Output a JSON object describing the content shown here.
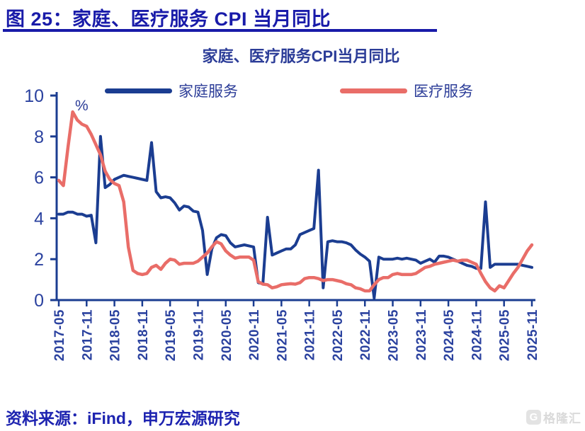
{
  "figure_header": {
    "label": "图 25：家庭、医疗服务 CPI 当月同比"
  },
  "footer": {
    "source": "资料来源：iFind，申万宏源研究"
  },
  "watermark": {
    "icon": "G",
    "text": "格隆汇"
  },
  "colors": {
    "header_text": "#191ba9",
    "header_rule": "#191ba9",
    "chart_text": "#2c3d98",
    "tick_text": "#2b429f",
    "axis": "#1b3d91",
    "footer_text": "#1d23b0",
    "watermark_gray": "#dadada"
  },
  "chart_data": {
    "type": "line",
    "title": "家庭、医疗服务CPI当月同比",
    "unit_label": "%",
    "grid": false,
    "legend_position": "top",
    "ylim": [
      0,
      10
    ],
    "yticks": [
      0,
      2,
      4,
      6,
      8,
      10
    ],
    "axis_color": "#1b3d91",
    "x_tick_labels": [
      "2017-05",
      "2017-11",
      "2018-05",
      "2018-11",
      "2019-05",
      "2019-11",
      "2020-05",
      "2020-11",
      "2021-05",
      "2021-11",
      "2022-05",
      "2022-11",
      "2023-05",
      "2023-11",
      "2024-05",
      "2024-11",
      "2025-05",
      "2025-11"
    ],
    "x": [
      "2017-05",
      "2017-06",
      "2017-07",
      "2017-08",
      "2017-09",
      "2017-10",
      "2017-11",
      "2017-12",
      "2018-01",
      "2018-02",
      "2018-03",
      "2018-04",
      "2018-05",
      "2018-06",
      "2018-07",
      "2018-08",
      "2018-09",
      "2018-10",
      "2018-11",
      "2018-12",
      "2019-01",
      "2019-02",
      "2019-03",
      "2019-04",
      "2019-05",
      "2019-06",
      "2019-07",
      "2019-08",
      "2019-09",
      "2019-10",
      "2019-11",
      "2019-12",
      "2020-01",
      "2020-02",
      "2020-03",
      "2020-04",
      "2020-05",
      "2020-06",
      "2020-07",
      "2020-08",
      "2020-09",
      "2020-10",
      "2020-11",
      "2020-12",
      "2021-01",
      "2021-02",
      "2021-03",
      "2021-04",
      "2021-05",
      "2021-06",
      "2021-07",
      "2021-08",
      "2021-09",
      "2021-10",
      "2021-11",
      "2021-12",
      "2022-01",
      "2022-02",
      "2022-03",
      "2022-04",
      "2022-05",
      "2022-06",
      "2022-07",
      "2022-08",
      "2022-09",
      "2022-10",
      "2022-11",
      "2022-12",
      "2023-01",
      "2023-02",
      "2023-03",
      "2023-04",
      "2023-05",
      "2023-06",
      "2023-07",
      "2023-08",
      "2023-09",
      "2023-10",
      "2023-11",
      "2023-12",
      "2024-01",
      "2024-02",
      "2024-03",
      "2024-04",
      "2024-05",
      "2024-06",
      "2024-07",
      "2024-08",
      "2024-09",
      "2024-10",
      "2024-11",
      "2024-12",
      "2025-01",
      "2025-02",
      "2025-03",
      "2025-04",
      "2025-05",
      "2025-06",
      "2025-07",
      "2025-08",
      "2025-09",
      "2025-10",
      "2025-11"
    ],
    "series": [
      {
        "name": "家庭服务",
        "data_name": "household-services-series",
        "color": "#1b3d91",
        "values": [
          4.2,
          4.2,
          4.3,
          4.3,
          4.2,
          4.2,
          4.1,
          4.15,
          2.8,
          8.0,
          5.5,
          5.65,
          5.9,
          6.0,
          6.1,
          6.05,
          6.0,
          5.95,
          5.9,
          5.85,
          7.7,
          5.3,
          5.0,
          5.05,
          5.0,
          4.75,
          4.4,
          4.6,
          4.55,
          4.35,
          4.3,
          3.4,
          1.25,
          2.5,
          3.05,
          3.2,
          3.15,
          2.8,
          2.6,
          2.65,
          2.7,
          2.65,
          2.6,
          0.85,
          0.8,
          4.05,
          2.2,
          2.3,
          2.4,
          2.5,
          2.5,
          2.7,
          3.2,
          3.3,
          3.4,
          3.5,
          6.35,
          0.6,
          2.85,
          2.9,
          2.85,
          2.85,
          2.8,
          2.7,
          2.45,
          2.25,
          2.1,
          1.9,
          0.1,
          2.1,
          2.0,
          2.0,
          2.0,
          2.05,
          2.0,
          2.05,
          2.0,
          1.95,
          1.8,
          1.9,
          2.0,
          1.85,
          2.15,
          2.15,
          2.1,
          2.0,
          1.9,
          1.8,
          1.7,
          1.65,
          1.55,
          1.55,
          4.8,
          1.6,
          1.75,
          1.75,
          1.75,
          1.75,
          1.75,
          1.75,
          1.7,
          1.65,
          1.6
        ]
      },
      {
        "name": "医疗服务",
        "data_name": "medical-services-series",
        "color": "#e96d68",
        "values": [
          5.85,
          5.6,
          7.5,
          9.2,
          8.8,
          8.6,
          8.5,
          8.1,
          7.6,
          7.1,
          6.3,
          5.9,
          5.7,
          5.6,
          4.8,
          2.6,
          1.45,
          1.3,
          1.25,
          1.3,
          1.6,
          1.7,
          1.5,
          1.8,
          2.0,
          1.95,
          1.75,
          1.8,
          1.8,
          1.8,
          1.9,
          2.1,
          2.3,
          2.6,
          2.85,
          2.75,
          2.4,
          2.2,
          2.05,
          2.1,
          2.1,
          2.1,
          1.95,
          0.9,
          0.78,
          0.75,
          0.6,
          0.65,
          0.75,
          0.78,
          0.8,
          0.78,
          0.85,
          1.05,
          1.1,
          1.1,
          1.05,
          0.95,
          1.0,
          1.0,
          0.95,
          0.9,
          0.8,
          0.75,
          0.6,
          0.55,
          0.45,
          0.45,
          0.75,
          1.0,
          1.1,
          1.1,
          1.25,
          1.3,
          1.25,
          1.25,
          1.25,
          1.3,
          1.45,
          1.6,
          1.65,
          1.75,
          1.8,
          1.85,
          1.9,
          1.95,
          1.9,
          1.95,
          1.95,
          1.85,
          1.75,
          1.3,
          0.9,
          0.6,
          0.45,
          0.7,
          0.6,
          0.95,
          1.3,
          1.6,
          2.0,
          2.4,
          2.7
        ]
      }
    ]
  }
}
